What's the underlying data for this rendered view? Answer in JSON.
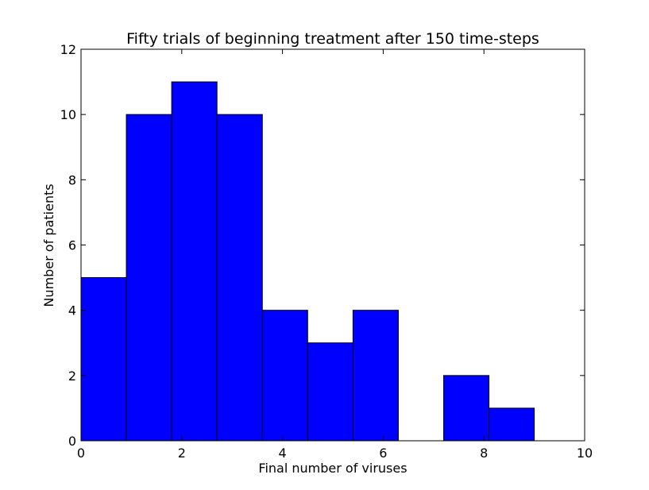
{
  "chart_data": {
    "type": "bar",
    "title": "Fifty trials of beginning treatment after 150 time-steps",
    "xlabel": "Final number of viruses",
    "ylabel": "Number of patients",
    "xlim": [
      0,
      10
    ],
    "ylim": [
      0,
      12
    ],
    "x_ticks": [
      0,
      2,
      4,
      6,
      8,
      10
    ],
    "y_ticks": [
      0,
      2,
      4,
      6,
      8,
      10,
      12
    ],
    "bin_edges": [
      0,
      0.9,
      1.8,
      2.7,
      3.6,
      4.5,
      5.4,
      6.3,
      7.2,
      8.1,
      9.0
    ],
    "values": [
      5,
      10,
      11,
      10,
      4,
      3,
      4,
      0,
      2,
      1
    ],
    "bar_color": "#0000ff",
    "edge_color": "#000000",
    "grid": false,
    "legend": "none"
  }
}
